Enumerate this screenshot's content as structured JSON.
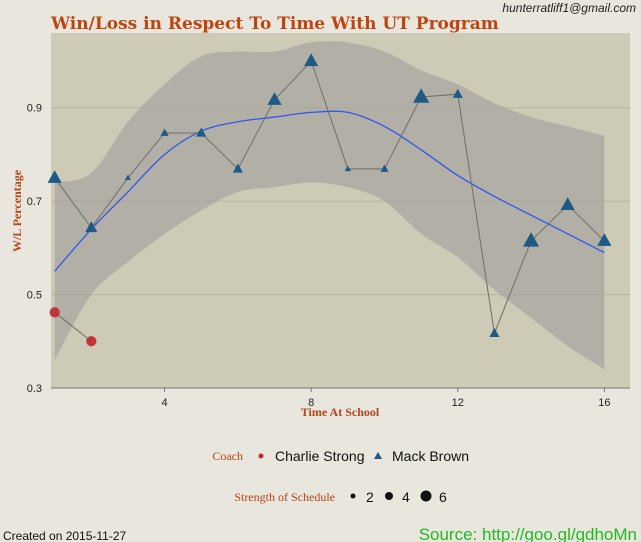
{
  "colors": {
    "background": "#e8e6dd",
    "panel": "#cdcab6",
    "band": "#a8a6a0",
    "title": "#c0440f",
    "axis_title": "#b4451a",
    "smooth_line": "#3355ee",
    "connector": "#6e6e68",
    "charlie_strong": "#c0262d",
    "mack_brown": "#1f5a85",
    "source": "#22bb22",
    "gridline": "#b6b3a3"
  },
  "header": {
    "email": "hunterratliff1@gmail.com"
  },
  "footer": {
    "created": "Created on 2015-11-27",
    "source": "Source: http://goo.gl/gdhoMn"
  },
  "chart_data": {
    "type": "scatter",
    "title": "Win/Loss in Respect To Time With UT Program",
    "xlabel": "Time At School",
    "ylabel": "W/L Percentage",
    "xlim": [
      0.9,
      16.7
    ],
    "ylim": [
      0.3,
      1.06
    ],
    "x_ticks": [
      4,
      8,
      12,
      16
    ],
    "y_ticks": [
      0.3,
      0.5,
      0.7,
      0.9
    ],
    "x_tick_labels": [
      "4",
      "8",
      "12",
      "16"
    ],
    "y_tick_labels": [
      "0.3",
      "0.5",
      "0.7",
      "0.9"
    ],
    "grid": true,
    "legend_position": "bottom",
    "series": [
      {
        "name": "Charlie Strong",
        "marker": "circle",
        "points": [
          {
            "x": 1,
            "y": 0.462,
            "sos": 4
          },
          {
            "x": 2,
            "y": 0.4,
            "sos": 4
          }
        ]
      },
      {
        "name": "Mack Brown",
        "marker": "triangle",
        "points": [
          {
            "x": 1,
            "y": 0.75,
            "sos": 5
          },
          {
            "x": 2,
            "y": 0.643,
            "sos": 4
          },
          {
            "x": 3,
            "y": 0.75,
            "sos": 1
          },
          {
            "x": 4,
            "y": 0.846,
            "sos": 2
          },
          {
            "x": 5,
            "y": 0.846,
            "sos": 3
          },
          {
            "x": 6,
            "y": 0.769,
            "sos": 3
          },
          {
            "x": 7,
            "y": 0.917,
            "sos": 5
          },
          {
            "x": 8,
            "y": 1.0,
            "sos": 5
          },
          {
            "x": 9,
            "y": 0.769,
            "sos": 1
          },
          {
            "x": 10,
            "y": 0.769,
            "sos": 2
          },
          {
            "x": 11,
            "y": 0.923,
            "sos": 6
          },
          {
            "x": 12,
            "y": 0.929,
            "sos": 3
          },
          {
            "x": 13,
            "y": 0.417,
            "sos": 3
          },
          {
            "x": 14,
            "y": 0.615,
            "sos": 6
          },
          {
            "x": 15,
            "y": 0.692,
            "sos": 5
          },
          {
            "x": 16,
            "y": 0.615,
            "sos": 5
          }
        ]
      }
    ],
    "smooth": {
      "x": [
        1,
        2,
        3,
        4,
        5,
        6,
        7,
        8,
        9,
        10,
        11,
        12,
        13,
        14,
        15,
        16
      ],
      "y": [
        0.55,
        0.64,
        0.72,
        0.8,
        0.85,
        0.87,
        0.88,
        0.89,
        0.89,
        0.86,
        0.81,
        0.755,
        0.71,
        0.67,
        0.63,
        0.59
      ],
      "lower": [
        0.36,
        0.5,
        0.57,
        0.63,
        0.68,
        0.72,
        0.73,
        0.74,
        0.73,
        0.7,
        0.63,
        0.58,
        0.51,
        0.45,
        0.39,
        0.34
      ],
      "upper": [
        0.74,
        0.76,
        0.87,
        0.95,
        1.01,
        1.02,
        1.02,
        1.04,
        1.04,
        1.02,
        0.98,
        0.95,
        0.91,
        0.88,
        0.86,
        0.84
      ]
    },
    "legend": {
      "coach_title": "Coach",
      "coach_items": [
        "Charlie Strong",
        "Mack Brown"
      ],
      "sos_title": "Strength of Schedule",
      "sos_items": [
        "2",
        "4",
        "6"
      ]
    }
  }
}
